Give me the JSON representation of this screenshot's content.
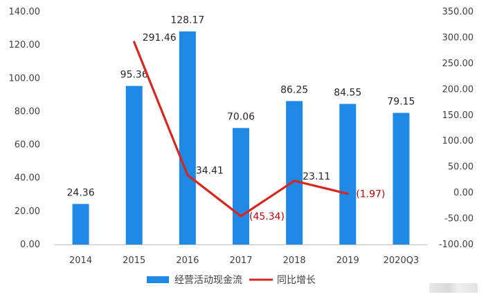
{
  "chart_data": {
    "type": "bar",
    "categories": [
      "2014",
      "2015",
      "2016",
      "2017",
      "2018",
      "2019",
      "2020Q3"
    ],
    "series": [
      {
        "name": "经营活动现金流",
        "type": "bar",
        "axis": "left",
        "color": "#1e88e5",
        "values": [
          24.36,
          95.36,
          128.17,
          70.06,
          86.25,
          84.55,
          79.15
        ],
        "labels": [
          "24.36",
          "95.36",
          "128.17",
          "70.06",
          "86.25",
          "84.55",
          "79.15"
        ]
      },
      {
        "name": "同比增长",
        "type": "line",
        "axis": "right",
        "color": "#d9251c",
        "values": [
          null,
          291.46,
          34.41,
          -45.34,
          23.11,
          -1.97,
          null
        ],
        "labels": [
          null,
          "291.46",
          "34.41",
          "(45.34)",
          "23.11",
          "(1.97)",
          null
        ]
      }
    ],
    "y_left": {
      "ylim": [
        0,
        140
      ],
      "ticks": [
        0,
        20,
        40,
        60,
        80,
        100,
        120,
        140
      ],
      "tick_labels": [
        "0.00",
        "20.00",
        "40.00",
        "60.00",
        "80.00",
        "100.00",
        "120.00",
        "140.00"
      ]
    },
    "y_right": {
      "ylim": [
        -100,
        350
      ],
      "ticks": [
        -100,
        -50,
        0,
        50,
        100,
        150,
        200,
        250,
        300,
        350
      ],
      "tick_labels": [
        "-100.00",
        "-50.00",
        "0.00",
        "50.00",
        "100.00",
        "150.00",
        "200.00",
        "250.00",
        "300.00",
        "350.00"
      ]
    },
    "grid": false,
    "legend_position": "bottom"
  }
}
